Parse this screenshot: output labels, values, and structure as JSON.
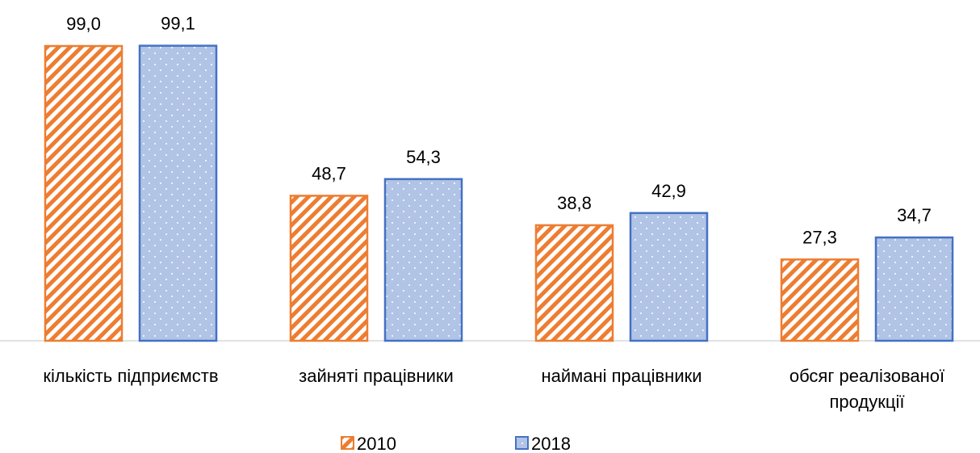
{
  "chart_data": {
    "type": "bar",
    "categories": [
      "кількість підприємств",
      "зайняті працівники",
      "наймані працівники",
      "обсяг реалізованої продукції"
    ],
    "series": [
      {
        "name": "2010",
        "color": "#ED7D31",
        "values": [
          99.0,
          48.7,
          38.8,
          27.3
        ],
        "value_labels": [
          "99,0",
          "48,7",
          "38,8",
          "27,3"
        ]
      },
      {
        "name": "2018",
        "color": "#4472C4",
        "values": [
          99.1,
          54.3,
          42.9,
          34.7
        ],
        "value_labels": [
          "99,1",
          "54,3",
          "42,9",
          "34,7"
        ]
      }
    ],
    "ylim": [
      0,
      100
    ],
    "legend": "bottom"
  }
}
